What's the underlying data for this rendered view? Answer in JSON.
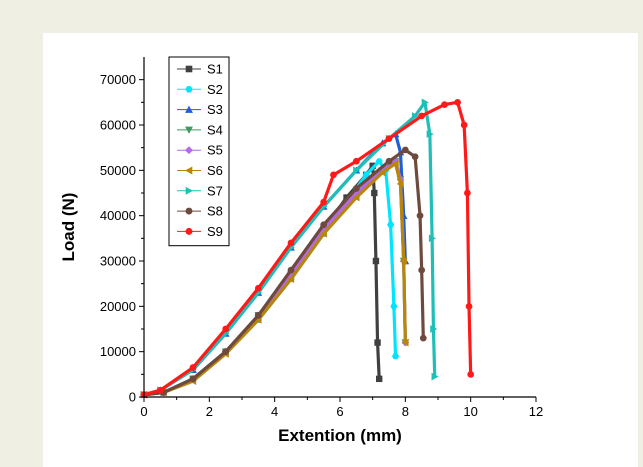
{
  "chart_data": {
    "type": "line",
    "title": "",
    "xlabel": "Extention (mm)",
    "ylabel": "Load (N)",
    "xlim": [
      0,
      12
    ],
    "ylim": [
      0,
      75000
    ],
    "xticks": [
      "0",
      "2",
      "4",
      "6",
      "8",
      "10",
      "12"
    ],
    "yticks": [
      "0",
      "10000",
      "20000",
      "30000",
      "40000",
      "50000",
      "60000",
      "70000"
    ],
    "legend_position": "top-left",
    "grid": false,
    "series": [
      {
        "name": "S1",
        "color": "#404040",
        "marker": "square",
        "x": [
          0,
          0.6,
          1.5,
          2.5,
          3.5,
          4.5,
          5.5,
          6.2,
          6.8,
          7.0,
          7.05,
          7.1,
          7.15,
          7.2
        ],
        "y": [
          500,
          1000,
          4000,
          10000,
          18000,
          27000,
          37000,
          44000,
          49000,
          51000,
          45000,
          30000,
          12000,
          4000
        ]
      },
      {
        "name": "S2",
        "color": "#00e5ff",
        "marker": "hexagon",
        "x": [
          0,
          0.6,
          1.5,
          2.5,
          3.5,
          4.5,
          5.5,
          6.2,
          6.8,
          7.2,
          7.4,
          7.55,
          7.65,
          7.7
        ],
        "y": [
          500,
          1000,
          4000,
          10000,
          17000,
          26000,
          36000,
          43000,
          49000,
          52000,
          50000,
          38000,
          20000,
          9000
        ]
      },
      {
        "name": "S3",
        "color": "#1e5fd6",
        "marker": "triangle-up",
        "x": [
          0,
          0.5,
          1.5,
          2.5,
          3.5,
          4.5,
          5.5,
          6.5,
          7.3,
          7.7,
          7.85,
          7.95,
          8.0
        ],
        "y": [
          500,
          1500,
          6000,
          14000,
          23000,
          33000,
          42000,
          50000,
          56000,
          58000,
          54000,
          40000,
          30000
        ]
      },
      {
        "name": "S4",
        "color": "#3e9b5f",
        "marker": "triangle-down",
        "x": [
          0,
          0.6,
          1.5,
          2.5,
          3.5,
          4.5,
          5.5,
          6.5,
          7.3,
          7.7,
          7.85,
          7.95,
          8.0
        ],
        "y": [
          500,
          1000,
          4000,
          10000,
          18000,
          27000,
          37000,
          45000,
          50000,
          52000,
          48000,
          30000,
          12000
        ]
      },
      {
        "name": "S5",
        "color": "#b46ae6",
        "marker": "diamond",
        "x": [
          0,
          0.6,
          1.5,
          2.5,
          3.5,
          4.5,
          5.5,
          6.5,
          7.3,
          7.7,
          7.85,
          7.95,
          8.0
        ],
        "y": [
          500,
          1000,
          4000,
          10000,
          18000,
          27000,
          37000,
          45000,
          50000,
          52000,
          48000,
          30000,
          12000
        ]
      },
      {
        "name": "S6",
        "color": "#b8860b",
        "marker": "triangle-left",
        "x": [
          0,
          0.6,
          1.5,
          2.5,
          3.5,
          4.5,
          5.5,
          6.5,
          7.3,
          7.7,
          7.85,
          7.95,
          8.0
        ],
        "y": [
          500,
          1000,
          3500,
          9500,
          17000,
          26000,
          36000,
          44000,
          49500,
          51500,
          47000,
          30000,
          12000
        ]
      },
      {
        "name": "S7",
        "color": "#1fbfb8",
        "marker": "triangle-right",
        "x": [
          0,
          0.5,
          1.5,
          2.5,
          3.5,
          4.5,
          5.5,
          6.5,
          7.5,
          8.3,
          8.6,
          8.75,
          8.82,
          8.86,
          8.9
        ],
        "y": [
          500,
          1500,
          6000,
          14000,
          23000,
          33000,
          42000,
          50000,
          57000,
          62000,
          65000,
          58000,
          35000,
          15000,
          4500
        ]
      },
      {
        "name": "S8",
        "color": "#6e4a3e",
        "marker": "circle",
        "x": [
          0,
          0.6,
          1.5,
          2.5,
          3.5,
          4.5,
          5.5,
          6.5,
          7.5,
          8.0,
          8.3,
          8.45,
          8.5,
          8.55
        ],
        "y": [
          500,
          1000,
          4000,
          10000,
          18000,
          28000,
          38000,
          46000,
          52000,
          54500,
          53000,
          40000,
          28000,
          13000
        ]
      },
      {
        "name": "S9",
        "color": "#ff1a1a",
        "marker": "circle",
        "x": [
          0,
          0.5,
          1.5,
          2.5,
          3.5,
          4.5,
          5.5,
          5.8,
          6.5,
          7.5,
          8.5,
          9.2,
          9.6,
          9.8,
          9.9,
          9.95,
          10.0
        ],
        "y": [
          500,
          1500,
          6500,
          15000,
          24000,
          34000,
          43000,
          49000,
          52000,
          57000,
          62000,
          64500,
          65000,
          60000,
          45000,
          20000,
          5000
        ]
      }
    ]
  }
}
